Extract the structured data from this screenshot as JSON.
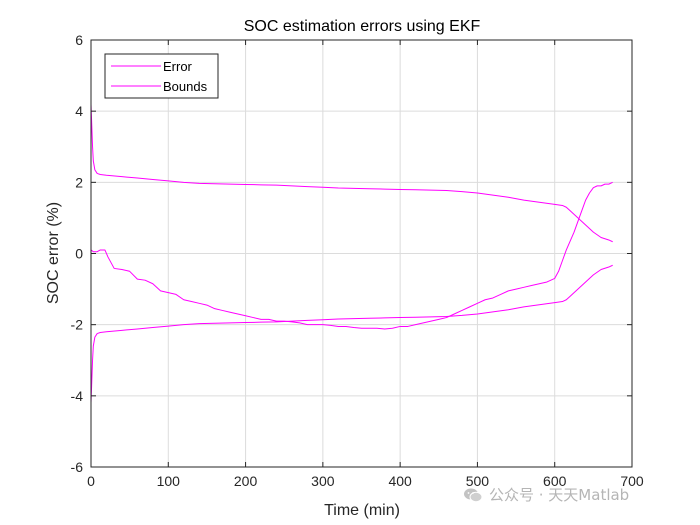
{
  "chart_data": {
    "type": "line",
    "title": "SOC estimation errors using EKF",
    "xlabel": "Time (min)",
    "ylabel": "SOC error (%)",
    "xlim": [
      0,
      700
    ],
    "ylim": [
      -6,
      6
    ],
    "xticks": [
      0,
      100,
      200,
      300,
      400,
      500,
      600,
      700
    ],
    "yticks": [
      -6,
      -4,
      -2,
      0,
      2,
      4,
      6
    ],
    "grid": true,
    "legend": {
      "position": "top-left",
      "entries": [
        "Error",
        "Bounds"
      ]
    },
    "colors": {
      "series": "#ff00ff",
      "grid": "#dcdcdc",
      "axes": "#262626"
    },
    "series": [
      {
        "name": "Error",
        "x": [
          0,
          3,
          8,
          12,
          18,
          22,
          30,
          40,
          50,
          60,
          70,
          80,
          90,
          100,
          110,
          120,
          130,
          140,
          150,
          160,
          170,
          180,
          190,
          200,
          210,
          220,
          230,
          240,
          250,
          260,
          270,
          280,
          290,
          300,
          310,
          320,
          330,
          340,
          350,
          360,
          370,
          380,
          390,
          400,
          410,
          420,
          430,
          440,
          450,
          460,
          470,
          480,
          490,
          500,
          510,
          520,
          530,
          540,
          550,
          560,
          570,
          580,
          590,
          600,
          605,
          610,
          615,
          620,
          625,
          630,
          635,
          640,
          645,
          650,
          655,
          660,
          665,
          670,
          675
        ],
        "y": [
          0.1,
          0.05,
          0.05,
          0.1,
          0.1,
          -0.1,
          -0.42,
          -0.45,
          -0.5,
          -0.72,
          -0.75,
          -0.85,
          -1.05,
          -1.1,
          -1.15,
          -1.3,
          -1.35,
          -1.4,
          -1.45,
          -1.55,
          -1.6,
          -1.65,
          -1.7,
          -1.75,
          -1.8,
          -1.85,
          -1.85,
          -1.9,
          -1.9,
          -1.92,
          -1.95,
          -2.0,
          -2.0,
          -2.0,
          -2.02,
          -2.05,
          -2.05,
          -2.08,
          -2.1,
          -2.1,
          -2.1,
          -2.12,
          -2.1,
          -2.05,
          -2.05,
          -2.0,
          -1.95,
          -1.9,
          -1.85,
          -1.8,
          -1.7,
          -1.6,
          -1.5,
          -1.4,
          -1.3,
          -1.25,
          -1.15,
          -1.05,
          -1.0,
          -0.95,
          -0.9,
          -0.85,
          -0.8,
          -0.7,
          -0.5,
          -0.2,
          0.1,
          0.35,
          0.6,
          0.9,
          1.2,
          1.5,
          1.7,
          1.85,
          1.9,
          1.9,
          1.95,
          1.95,
          2.0
        ]
      },
      {
        "name": "Bounds",
        "x": [
          0,
          1,
          2,
          3,
          5,
          8,
          12,
          20,
          40,
          60,
          80,
          100,
          120,
          140,
          160,
          180,
          200,
          220,
          240,
          260,
          280,
          300,
          320,
          340,
          360,
          380,
          400,
          420,
          440,
          460,
          480,
          500,
          520,
          540,
          560,
          580,
          600,
          610,
          615,
          620,
          630,
          640,
          650,
          660,
          670,
          675
        ],
        "y": [
          4.2,
          3.6,
          3.0,
          2.6,
          2.35,
          2.25,
          2.22,
          2.2,
          2.16,
          2.12,
          2.08,
          2.04,
          2.0,
          1.97,
          1.96,
          1.95,
          1.94,
          1.93,
          1.92,
          1.9,
          1.88,
          1.86,
          1.84,
          1.83,
          1.82,
          1.81,
          1.8,
          1.79,
          1.78,
          1.77,
          1.74,
          1.7,
          1.64,
          1.58,
          1.5,
          1.44,
          1.38,
          1.35,
          1.3,
          1.2,
          1.0,
          0.8,
          0.6,
          0.45,
          0.38,
          0.33
        ]
      },
      {
        "x": [
          0,
          1,
          2,
          3,
          5,
          8,
          12,
          20,
          40,
          60,
          80,
          100,
          120,
          140,
          160,
          180,
          200,
          220,
          240,
          260,
          280,
          300,
          320,
          340,
          360,
          380,
          400,
          420,
          440,
          460,
          480,
          500,
          520,
          540,
          560,
          580,
          600,
          610,
          615,
          620,
          630,
          640,
          650,
          660,
          670,
          675
        ],
        "y": [
          -4.2,
          -3.6,
          -3.0,
          -2.6,
          -2.35,
          -2.25,
          -2.22,
          -2.2,
          -2.16,
          -2.12,
          -2.08,
          -2.04,
          -2.0,
          -1.97,
          -1.96,
          -1.95,
          -1.94,
          -1.93,
          -1.92,
          -1.9,
          -1.88,
          -1.86,
          -1.84,
          -1.83,
          -1.82,
          -1.81,
          -1.8,
          -1.79,
          -1.78,
          -1.77,
          -1.74,
          -1.7,
          -1.64,
          -1.58,
          -1.5,
          -1.44,
          -1.38,
          -1.35,
          -1.3,
          -1.2,
          -1.0,
          -0.8,
          -0.6,
          -0.45,
          -0.38,
          -0.33
        ]
      }
    ]
  },
  "watermark": {
    "icon": "wechat-icon",
    "text": "公众号 · 天天Matlab"
  }
}
